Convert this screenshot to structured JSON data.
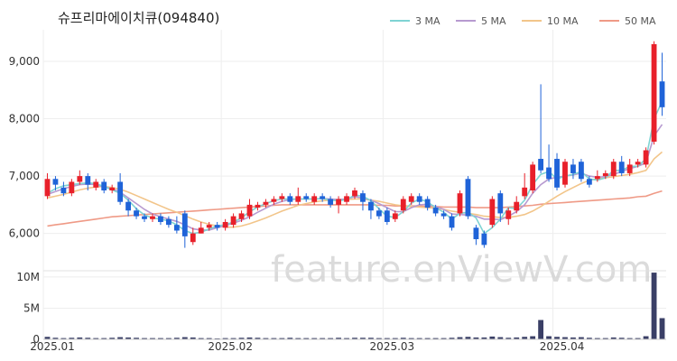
{
  "chart_data": {
    "type": "candlestick",
    "title": "슈프리마에이치큐(094840)",
    "watermark": "feature.enViewV.com",
    "legend": [
      {
        "label": "3 MA",
        "color": "#7fd3d3"
      },
      {
        "label": "5 MA",
        "color": "#b79ad0"
      },
      {
        "label": "10 MA",
        "color": "#f2c58a"
      },
      {
        "label": "50 MA",
        "color": "#ef9a86"
      }
    ],
    "colors": {
      "up": "#e8202a",
      "down": "#1f63d8",
      "volume": "#3a3f66",
      "grid": "#eeeeee"
    },
    "price_ticks": [
      {
        "value": 6000,
        "label": "6,000"
      },
      {
        "value": 7000,
        "label": "7,000"
      },
      {
        "value": 8000,
        "label": "8,000"
      },
      {
        "value": 9000,
        "label": "9,000"
      }
    ],
    "volume_ticks": [
      {
        "value": 0,
        "label": "0"
      },
      {
        "value": 5000000,
        "label": "5M"
      },
      {
        "value": 10000000,
        "label": "10M"
      }
    ],
    "price_range": [
      5350,
      9550
    ],
    "volume_range": [
      0,
      11000000
    ],
    "date_ticks": [
      {
        "index": 0,
        "label": "2025.01"
      },
      {
        "index": 22,
        "label": "2025.02"
      },
      {
        "index": 42,
        "label": "2025.03"
      },
      {
        "index": 63,
        "label": "2025.04"
      }
    ],
    "candles": [
      [
        6650,
        6950,
        7050,
        6600
      ],
      [
        6950,
        6850,
        7000,
        6750
      ],
      [
        6800,
        6700,
        6900,
        6650
      ],
      [
        6700,
        6900,
        6950,
        6650
      ],
      [
        6900,
        7000,
        7100,
        6850
      ],
      [
        7000,
        6850,
        7050,
        6750
      ],
      [
        6800,
        6900,
        6950,
        6750
      ],
      [
        6900,
        6750,
        6950,
        6700
      ],
      [
        6750,
        6800,
        6850,
        6700
      ],
      [
        6900,
        6550,
        7050,
        6500
      ],
      [
        6550,
        6400,
        6600,
        6300
      ],
      [
        6400,
        6300,
        6450,
        6250
      ],
      [
        6300,
        6250,
        6350,
        6200
      ],
      [
        6250,
        6300,
        6350,
        6200
      ],
      [
        6300,
        6200,
        6350,
        6150
      ],
      [
        6250,
        6150,
        6300,
        6100
      ],
      [
        6150,
        6050,
        6300,
        6000
      ],
      [
        6350,
        5950,
        6400,
        5750
      ],
      [
        5850,
        6000,
        6100,
        5800
      ],
      [
        6000,
        6100,
        6200,
        6000
      ],
      [
        6100,
        6150,
        6200,
        6050
      ],
      [
        6150,
        6100,
        6200,
        6050
      ],
      [
        6100,
        6200,
        6250,
        6050
      ],
      [
        6150,
        6300,
        6350,
        6100
      ],
      [
        6250,
        6350,
        6400,
        6200
      ],
      [
        6300,
        6500,
        6600,
        6250
      ],
      [
        6450,
        6500,
        6550,
        6400
      ],
      [
        6500,
        6550,
        6600,
        6450
      ],
      [
        6550,
        6600,
        6650,
        6500
      ],
      [
        6600,
        6650,
        6700,
        6550
      ],
      [
        6650,
        6550,
        6700,
        6500
      ],
      [
        6550,
        6650,
        6800,
        6500
      ],
      [
        6650,
        6600,
        6700,
        6550
      ],
      [
        6550,
        6650,
        6700,
        6500
      ],
      [
        6650,
        6600,
        6700,
        6550
      ],
      [
        6600,
        6500,
        6650,
        6450
      ],
      [
        6500,
        6600,
        6650,
        6350
      ],
      [
        6550,
        6650,
        6700,
        6500
      ],
      [
        6650,
        6750,
        6800,
        6600
      ],
      [
        6700,
        6550,
        6750,
        6400
      ],
      [
        6550,
        6400,
        6600,
        6250
      ],
      [
        6400,
        6300,
        6450,
        6250
      ],
      [
        6400,
        6200,
        6450,
        6150
      ],
      [
        6250,
        6350,
        6400,
        6200
      ],
      [
        6400,
        6600,
        6650,
        6350
      ],
      [
        6550,
        6650,
        6700,
        6500
      ],
      [
        6650,
        6550,
        6700,
        6500
      ],
      [
        6600,
        6450,
        6650,
        6400
      ],
      [
        6450,
        6350,
        6500,
        6300
      ],
      [
        6350,
        6300,
        6400,
        6250
      ],
      [
        6300,
        6100,
        6350,
        6050
      ],
      [
        6350,
        6700,
        6750,
        6300
      ],
      [
        6950,
        6300,
        7000,
        6250
      ],
      [
        6100,
        5900,
        6150,
        5800
      ],
      [
        6000,
        5800,
        6050,
        5750
      ],
      [
        6150,
        6600,
        6650,
        6100
      ],
      [
        6700,
        6350,
        6750,
        6200
      ],
      [
        6250,
        6400,
        6450,
        6150
      ],
      [
        6400,
        6550,
        6650,
        6350
      ],
      [
        6650,
        6800,
        7050,
        6600
      ],
      [
        6750,
        7200,
        7250,
        6700
      ],
      [
        7300,
        7100,
        8600,
        7050
      ],
      [
        7150,
        6950,
        7550,
        6900
      ],
      [
        7300,
        6800,
        7400,
        6750
      ],
      [
        6850,
        7250,
        7300,
        6800
      ],
      [
        7200,
        7050,
        7300,
        6950
      ],
      [
        7250,
        6950,
        7300,
        6900
      ],
      [
        6950,
        6850,
        7000,
        6800
      ],
      [
        6950,
        7000,
        7100,
        6900
      ],
      [
        7000,
        7050,
        7100,
        6950
      ],
      [
        7000,
        7250,
        7300,
        6950
      ],
      [
        7250,
        7050,
        7350,
        7000
      ],
      [
        7050,
        7200,
        7300,
        7000
      ],
      [
        7200,
        7250,
        7300,
        7150
      ],
      [
        7200,
        7450,
        7500,
        7150
      ],
      [
        7600,
        9300,
        9350,
        7550
      ],
      [
        8650,
        8200,
        9150,
        8050
      ]
    ],
    "ma": {
      "3": [
        6700,
        6780,
        6830,
        6850,
        6870,
        6880,
        6870,
        6820,
        6760,
        6700,
        6580,
        6430,
        6320,
        6270,
        6250,
        6220,
        6150,
        6050,
        6000,
        6020,
        6080,
        6130,
        6150,
        6200,
        6270,
        6380,
        6460,
        6520,
        6570,
        6600,
        6600,
        6600,
        6600,
        6600,
        6610,
        6580,
        6570,
        6590,
        6670,
        6650,
        6570,
        6430,
        6300,
        6280,
        6380,
        6530,
        6600,
        6550,
        6450,
        6370,
        6250,
        6350,
        6370,
        6270,
        6000,
        6100,
        6250,
        6450,
        6430,
        6580,
        6850,
        7030,
        7080,
        6950,
        7000,
        7030,
        7080,
        6950,
        6930,
        6970,
        7100,
        7100,
        7170,
        7170,
        7300,
        8000,
        8300
      ],
      "5": [
        6680,
        6730,
        6780,
        6820,
        6850,
        6860,
        6850,
        6810,
        6780,
        6720,
        6620,
        6520,
        6420,
        6340,
        6290,
        6250,
        6210,
        6150,
        6080,
        6060,
        6060,
        6100,
        6140,
        6180,
        6230,
        6290,
        6370,
        6440,
        6510,
        6560,
        6590,
        6600,
        6600,
        6600,
        6610,
        6600,
        6590,
        6600,
        6640,
        6620,
        6580,
        6520,
        6450,
        6380,
        6380,
        6450,
        6500,
        6510,
        6470,
        6420,
        6340,
        6330,
        6320,
        6300,
        6250,
        6250,
        6240,
        6300,
        6380,
        6500,
        6700,
        6850,
        6950,
        6980,
        7000,
        7020,
        7050,
        7000,
        6980,
        6990,
        7030,
        7080,
        7130,
        7170,
        7230,
        7700,
        7900
      ],
      "10": [
        6620,
        6650,
        6680,
        6720,
        6760,
        6790,
        6810,
        6820,
        6800,
        6770,
        6720,
        6660,
        6600,
        6540,
        6480,
        6420,
        6370,
        6310,
        6250,
        6200,
        6160,
        6130,
        6110,
        6110,
        6130,
        6170,
        6220,
        6270,
        6330,
        6390,
        6440,
        6490,
        6520,
        6550,
        6570,
        6580,
        6590,
        6590,
        6600,
        6600,
        6580,
        6560,
        6530,
        6500,
        6480,
        6470,
        6460,
        6450,
        6440,
        6420,
        6390,
        6370,
        6350,
        6330,
        6300,
        6290,
        6280,
        6280,
        6300,
        6330,
        6390,
        6470,
        6560,
        6650,
        6730,
        6800,
        6870,
        6930,
        6950,
        6970,
        6990,
        7010,
        7030,
        7060,
        7100,
        7300,
        7420
      ],
      "50": [
        6130,
        6150,
        6170,
        6190,
        6210,
        6230,
        6250,
        6270,
        6290,
        6300,
        6310,
        6320,
        6330,
        6340,
        6350,
        6360,
        6370,
        6380,
        6390,
        6400,
        6410,
        6420,
        6430,
        6440,
        6450,
        6460,
        6470,
        6480,
        6490,
        6500,
        6500,
        6500,
        6500,
        6500,
        6500,
        6500,
        6500,
        6500,
        6500,
        6500,
        6500,
        6490,
        6490,
        6480,
        6480,
        6480,
        6480,
        6470,
        6470,
        6460,
        6460,
        6460,
        6460,
        6450,
        6450,
        6450,
        6450,
        6460,
        6470,
        6480,
        6490,
        6510,
        6520,
        6530,
        6540,
        6550,
        6560,
        6570,
        6580,
        6590,
        6600,
        6610,
        6620,
        6640,
        6650,
        6700,
        6740
      ]
    },
    "volume": [
      400000,
      250000,
      200000,
      250000,
      300000,
      250000,
      200000,
      200000,
      250000,
      350000,
      300000,
      250000,
      200000,
      200000,
      200000,
      200000,
      250000,
      350000,
      300000,
      200000,
      200000,
      150000,
      200000,
      200000,
      250000,
      300000,
      250000,
      200000,
      200000,
      200000,
      250000,
      200000,
      200000,
      200000,
      200000,
      200000,
      250000,
      200000,
      250000,
      250000,
      250000,
      200000,
      200000,
      200000,
      250000,
      200000,
      200000,
      200000,
      200000,
      200000,
      250000,
      350000,
      400000,
      300000,
      300000,
      450000,
      350000,
      250000,
      300000,
      400000,
      500000,
      3100000,
      500000,
      400000,
      350000,
      300000,
      350000,
      250000,
      200000,
      200000,
      300000,
      250000,
      200000,
      200000,
      500000,
      10700000,
      3400000
    ]
  }
}
